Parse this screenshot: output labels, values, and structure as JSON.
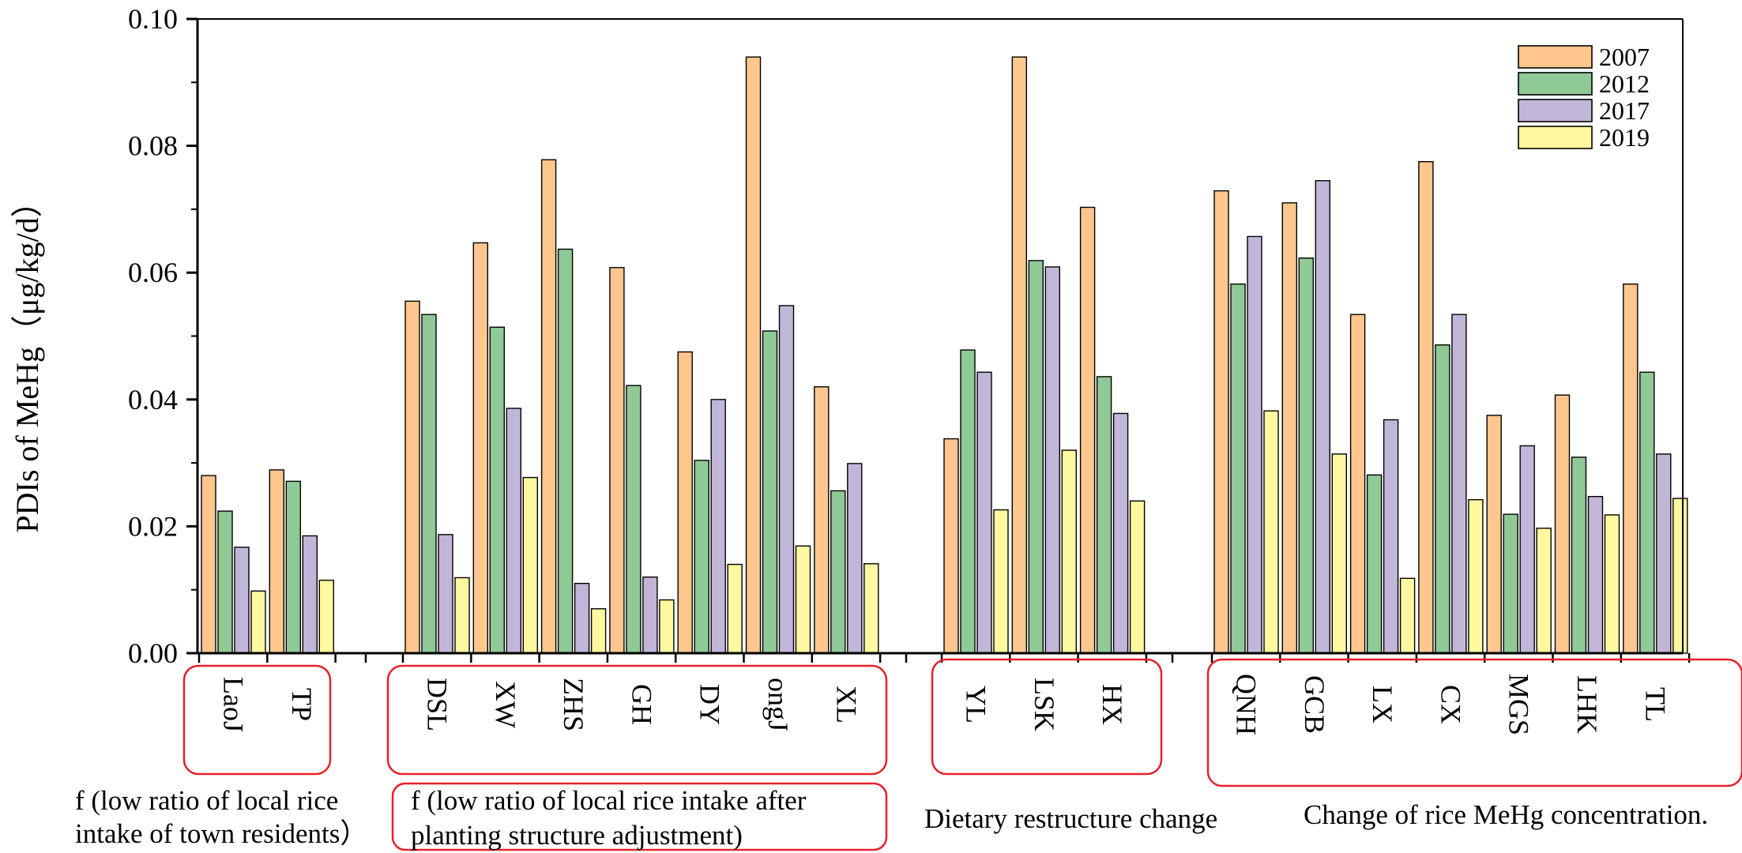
{
  "chart_data": {
    "type": "bar",
    "ylabel": "PDIs of MeHg（μg/kg/d）",
    "ylim": [
      0,
      0.1
    ],
    "yticks": [
      "0.00",
      "0.02",
      "0.04",
      "0.06",
      "0.08",
      "0.10"
    ],
    "grid": false,
    "legend_position": "top-right",
    "series": [
      {
        "name": "2007",
        "color": "#FFC68E"
      },
      {
        "name": "2012",
        "color": "#8FC996"
      },
      {
        "name": "2017",
        "color": "#C2B6D8"
      },
      {
        "name": "2019",
        "color": "#FFF8A0"
      }
    ],
    "groups": [
      {
        "caption": [
          "f (low ratio of local rice",
          "intake  of town residents）"
        ],
        "sites": [
          {
            "label": "LaoJ",
            "values": [
              0.028,
              0.0224,
              0.0167,
              0.0098
            ]
          },
          {
            "label": "TP",
            "values": [
              0.0289,
              0.0271,
              0.0185,
              0.0115
            ]
          }
        ]
      },
      {
        "caption": [
          "f (low ratio of local rice intake after",
          "planting structure  adjustment)"
        ],
        "sites": [
          {
            "label": "DSL",
            "values": [
              0.0555,
              0.0534,
              0.0187,
              0.0119
            ]
          },
          {
            "label": "XW",
            "values": [
              0.0647,
              0.0514,
              0.0386,
              0.0277
            ]
          },
          {
            "label": "ZHS",
            "values": [
              0.0778,
              0.0637,
              0.011,
              0.007
            ]
          },
          {
            "label": "GH",
            "values": [
              0.0608,
              0.0422,
              0.012,
              0.0084
            ]
          },
          {
            "label": "DY",
            "values": [
              0.0475,
              0.0304,
              0.04,
              0.014
            ]
          },
          {
            "label": "ongJ",
            "values": [
              0.094,
              0.0508,
              0.0548,
              0.0169
            ]
          },
          {
            "label": "XL",
            "values": [
              0.042,
              0.0256,
              0.0299,
              0.0141
            ]
          }
        ]
      },
      {
        "caption": [
          "Dietary restructure change"
        ],
        "sites": [
          {
            "label": "YL",
            "values": [
              0.0338,
              0.0478,
              0.0443,
              0.0226
            ]
          },
          {
            "label": "LSK",
            "values": [
              0.094,
              0.0619,
              0.0609,
              0.032
            ]
          },
          {
            "label": "HX",
            "values": [
              0.0703,
              0.0436,
              0.0378,
              0.024
            ]
          }
        ]
      },
      {
        "caption": [
          "Change of rice MeHg concentration."
        ],
        "sites": [
          {
            "label": "QNH",
            "values": [
              0.0729,
              0.0582,
              0.0657,
              0.0382
            ]
          },
          {
            "label": "GCB",
            "values": [
              0.071,
              0.0623,
              0.0745,
              0.0314
            ]
          },
          {
            "label": "LX",
            "values": [
              0.0534,
              0.0281,
              0.0368,
              0.0118
            ]
          },
          {
            "label": "CX",
            "values": [
              0.0775,
              0.0486,
              0.0534,
              0.0242
            ]
          },
          {
            "label": "MGS",
            "values": [
              0.0375,
              0.0219,
              0.0327,
              0.0197
            ]
          },
          {
            "label": "LHK",
            "values": [
              0.0407,
              0.0309,
              0.0247,
              0.0218
            ]
          },
          {
            "label": "TL",
            "values": [
              0.0582,
              0.0443,
              0.0314,
              0.0244
            ]
          }
        ]
      }
    ]
  }
}
